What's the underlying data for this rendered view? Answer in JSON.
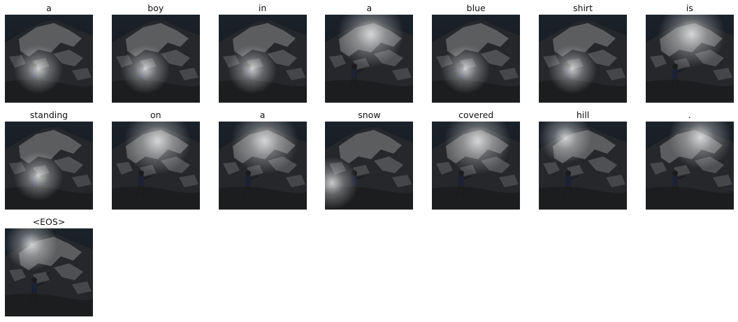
{
  "title": "",
  "captions": [
    "a",
    "boy",
    "in",
    "a",
    "blue",
    "shirt",
    "is",
    "standing",
    "on",
    "a",
    "snow",
    "covered",
    "hill",
    ".",
    "<EOS>"
  ],
  "attention_focus": [
    "lower-left",
    "lower-left",
    "lower-left",
    "upper-center",
    "lower-left",
    "lower-left",
    "upper-center",
    "lower-left",
    "upper-center",
    "upper-center",
    "left-edge",
    "upper-center",
    "upper-left",
    "upper-right",
    "upper-left"
  ]
}
